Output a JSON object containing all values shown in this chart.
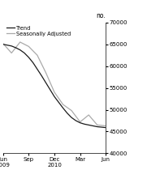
{
  "title": "no.",
  "ylim": [
    40000,
    70000
  ],
  "yticks": [
    40000,
    45000,
    50000,
    55000,
    60000,
    65000,
    70000
  ],
  "xlim": [
    0,
    12
  ],
  "xtick_positions": [
    0,
    3,
    6,
    9,
    12
  ],
  "xtick_labels_top": [
    "Jun",
    "Sep",
    "Dec",
    "Mar",
    "Jun"
  ],
  "xtick_labels_bottom": [
    "2009",
    "",
    "2010",
    "",
    ""
  ],
  "trend_x": [
    0,
    0.5,
    1,
    1.5,
    2,
    2.5,
    3,
    3.5,
    4,
    4.5,
    5,
    5.5,
    6,
    6.5,
    7,
    7.5,
    8,
    8.5,
    9,
    9.5,
    10,
    10.5,
    11,
    11.5,
    12
  ],
  "trend_y": [
    65000,
    64800,
    64600,
    64200,
    63700,
    63000,
    62000,
    60800,
    59300,
    57800,
    56200,
    54600,
    53000,
    51700,
    50400,
    49200,
    48200,
    47500,
    47000,
    46700,
    46500,
    46300,
    46100,
    46000,
    45900
  ],
  "seasonal_x": [
    0,
    1,
    2,
    3,
    4,
    5,
    6,
    7,
    8,
    9,
    10,
    11,
    12
  ],
  "seasonal_y": [
    65200,
    63000,
    65500,
    64500,
    62500,
    58500,
    54000,
    51200,
    49800,
    47200,
    48800,
    46500,
    46300
  ],
  "trend_color": "#1a1a1a",
  "seasonal_color": "#aaaaaa",
  "trend_linewidth": 0.9,
  "seasonal_linewidth": 0.9,
  "legend_trend": "Trend",
  "legend_seasonal": "Seasonally Adjusted",
  "background_color": "#ffffff"
}
